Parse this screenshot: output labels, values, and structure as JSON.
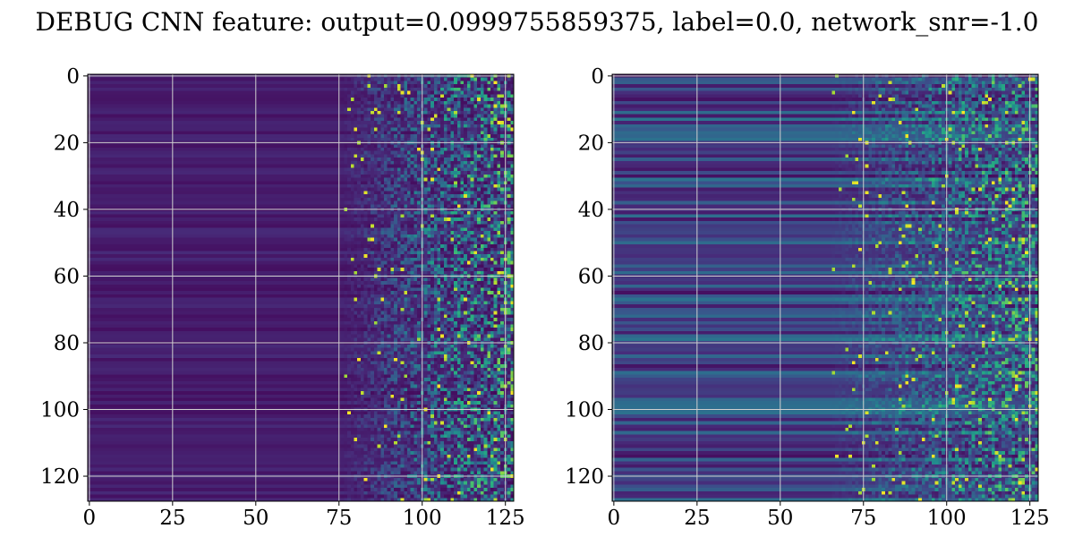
{
  "figure": {
    "title": "DEBUG CNN feature: output=0.0999755859375, label=0.0, network_snr=-1.0"
  },
  "chart_data": [
    {
      "type": "heatmap",
      "title": "",
      "xlabel": "",
      "ylabel": "",
      "rows": 128,
      "cols": 128,
      "xlim": [
        -0.5,
        127.5
      ],
      "ylim": [
        127.5,
        -0.5
      ],
      "xticks": [
        0,
        25,
        50,
        75,
        100,
        125
      ],
      "yticks": [
        0,
        20,
        40,
        60,
        80,
        100,
        120
      ],
      "grid": true,
      "colormap": "viridis",
      "pattern": "near-zero (dark purple) for columns 0-75; increasingly bright noisy values toward columns 100-127 with occasional yellow peaks",
      "profile": {
        "flat_until_col": 75,
        "row_banding": 0.08,
        "noise_start_col": 75,
        "noise_strength": 0.9
      }
    },
    {
      "type": "heatmap",
      "title": "",
      "xlabel": "",
      "ylabel": "",
      "rows": 128,
      "cols": 128,
      "xlim": [
        -0.5,
        127.5
      ],
      "ylim": [
        127.5,
        -0.5
      ],
      "xticks": [
        0,
        25,
        50,
        75,
        100,
        125
      ],
      "yticks": [
        0,
        20,
        40,
        60,
        80,
        100,
        120
      ],
      "grid": true,
      "colormap": "viridis",
      "pattern": "horizontal row bands (blue/teal) across all columns; noisy bright speckle for columns 75-127",
      "profile": {
        "flat_until_col": 60,
        "row_banding": 0.35,
        "noise_start_col": 65,
        "noise_strength": 0.75
      }
    }
  ],
  "colors": {
    "viridis_low": "#440154",
    "viridis_mid": "#21918c",
    "viridis_high": "#fde725",
    "grid": "#d0d0d0",
    "axes": "#000000",
    "background": "#ffffff"
  }
}
